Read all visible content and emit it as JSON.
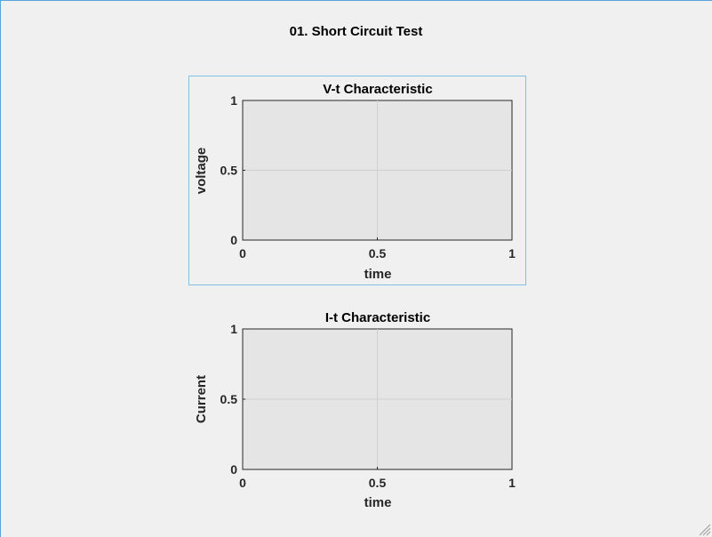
{
  "figure": {
    "title": "01. Short Circuit Test"
  },
  "colors": {
    "axes_background": "#e5e5e5",
    "grid": "#cfcfcf",
    "axes_border": "#262626",
    "tick_text": "#262626",
    "selection_border": "#7ec0e6"
  },
  "icons": {
    "resize_grip": "resize-grip-icon"
  },
  "chart_data": [
    {
      "type": "line",
      "title": "V-t Characteristic",
      "xlabel": "time",
      "ylabel": "voltage",
      "xlim": [
        0,
        1
      ],
      "ylim": [
        0,
        1
      ],
      "xticks": [
        "0",
        "0.5",
        "1"
      ],
      "yticks": [
        "0",
        "0.5",
        "1"
      ],
      "grid": true,
      "selected": true,
      "series": []
    },
    {
      "type": "line",
      "title": "I-t Characteristic",
      "xlabel": "time",
      "ylabel": "Current",
      "xlim": [
        0,
        1
      ],
      "ylim": [
        0,
        1
      ],
      "xticks": [
        "0",
        "0.5",
        "1"
      ],
      "yticks": [
        "0",
        "0.5",
        "1"
      ],
      "grid": true,
      "selected": false,
      "series": []
    }
  ]
}
